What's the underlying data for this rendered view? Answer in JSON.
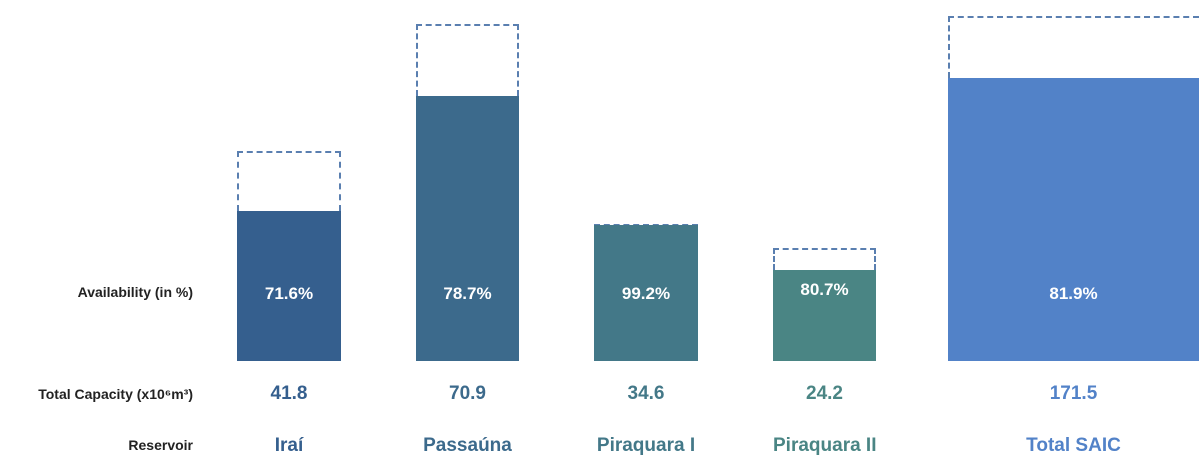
{
  "chart_data": {
    "type": "bar",
    "row_labels": {
      "availability": "Availability (in %)",
      "capacity": "Total Capacity (x10⁶m³)",
      "reservoir": "Reservoir"
    },
    "categories": [
      "Iraí",
      "Passaúna",
      "Piraquara I",
      "Piraquara II",
      "Total SAIC"
    ],
    "availability_pct": [
      71.6,
      78.7,
      99.2,
      80.7,
      81.9
    ],
    "availability_labels": [
      "71.6%",
      "78.7%",
      "99.2%",
      "80.7%",
      "81.9%"
    ],
    "capacity": [
      41.8,
      70.9,
      34.6,
      24.2,
      171.5
    ],
    "capacity_labels": [
      "41.8",
      "70.9",
      "34.6",
      "24.2",
      "171.5"
    ],
    "colors": [
      "#355f8e",
      "#3c6a8c",
      "#437888",
      "#4a8584",
      "#5282c8"
    ],
    "label_colors": [
      "#355f8e",
      "#3c6a8c",
      "#437888",
      "#4a8584",
      "#5282c8"
    ]
  }
}
